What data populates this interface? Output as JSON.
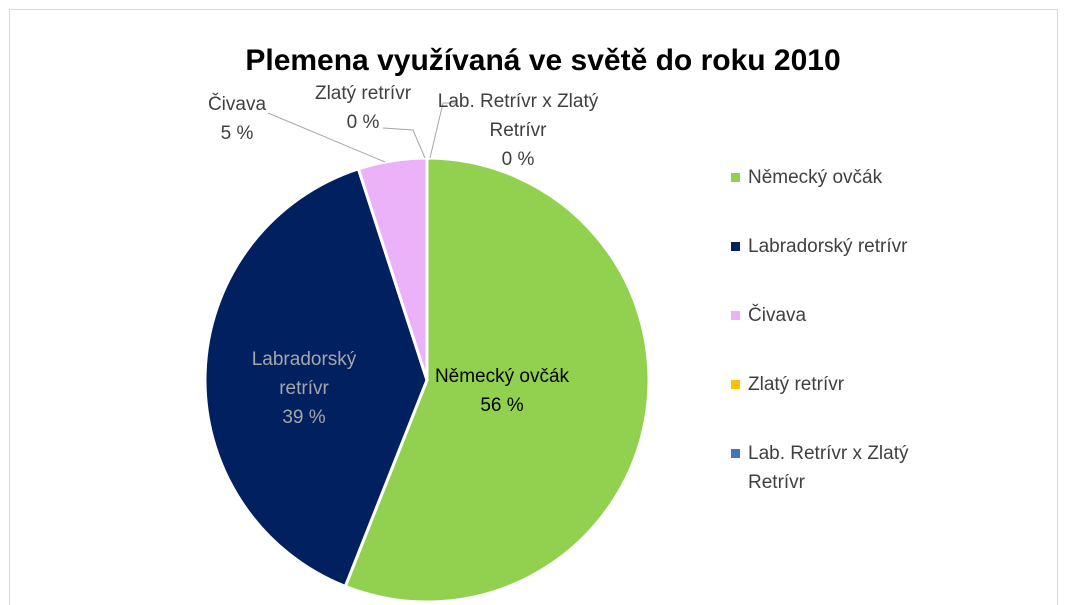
{
  "chart_data": {
    "type": "pie",
    "title": "Plemena využívaná ve světě do roku 2010",
    "categories": [
      "Německý ovčák",
      "Labradorský retrívr",
      "Čivava",
      "Zlatý retrívr",
      "Lab. Retrívr x Zlatý Retrívr"
    ],
    "values": [
      56,
      39,
      5,
      0,
      0
    ],
    "value_labels": [
      "56 %",
      "39 %",
      "5 %",
      "0 %",
      "0 %"
    ],
    "colors": [
      "#92d050",
      "#002060",
      "#ebb1f9",
      "#ffc000",
      "#4472c4"
    ],
    "legend": "right"
  }
}
